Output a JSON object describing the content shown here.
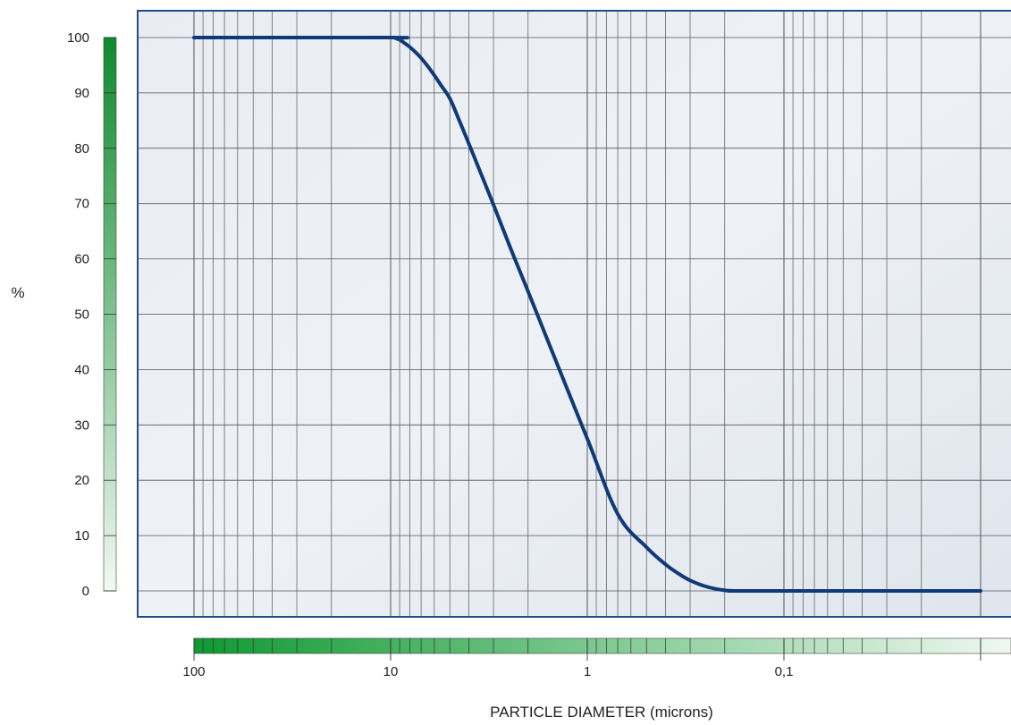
{
  "chart_data": {
    "type": "line",
    "title": "",
    "ylabel": "%",
    "xlabel": "PARTICLE DIAMETER (microns)",
    "x_scale": "log",
    "x_direction": "decreasing",
    "xlim": [
      100,
      0.01
    ],
    "ylim": [
      0,
      100
    ],
    "x_ticks": [
      {
        "value": 100,
        "label": "100"
      },
      {
        "value": 10,
        "label": "10"
      },
      {
        "value": 1,
        "label": "1"
      },
      {
        "value": 0.1,
        "label": "0,1"
      }
    ],
    "y_ticks": [
      0,
      10,
      20,
      30,
      40,
      50,
      60,
      70,
      80,
      90,
      100
    ],
    "grid": true,
    "series": [
      {
        "color": "#0f3a78",
        "x": [
          100,
          10,
          9.5,
          9,
          8.5,
          8,
          7.5,
          7,
          6.5,
          6,
          5.5,
          5,
          4.5,
          4,
          3.5,
          3,
          2.5,
          2,
          1.5,
          1,
          0.7,
          0.5,
          0.4,
          0.35,
          0.3,
          0.25,
          0.2,
          0.17,
          0.15,
          0.01
        ],
        "values": [
          100,
          100,
          99.9,
          99.6,
          99.0,
          98.3,
          97.4,
          96.3,
          94.9,
          93.2,
          91.2,
          89.0,
          85.2,
          80.8,
          75.7,
          69.8,
          62.6,
          54.1,
          43.0,
          27.5,
          13.9,
          7.9,
          4.8,
          3.3,
          1.9,
          0.8,
          0.1,
          0,
          0,
          0
        ]
      }
    ],
    "colors": {
      "frame": "#1f4d8c",
      "grid": "#555555",
      "green_dark": "#109030",
      "green_light": "#e6f3e6"
    }
  }
}
